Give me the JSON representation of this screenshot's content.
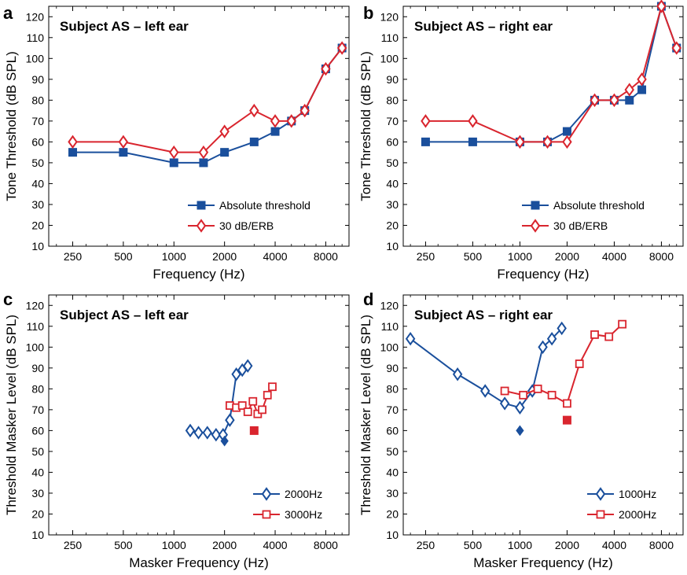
{
  "colors": {
    "blue": "#1a4f9c",
    "red": "#d9252e"
  },
  "chart_data": [
    {
      "panel": "a",
      "type": "line",
      "title": "Subject AS – left ear",
      "xlabel": "Frequency (Hz)",
      "ylabel": "Tone Threshold (dB SPL)",
      "xscale": "log",
      "xlim": [
        180,
        11000
      ],
      "ylim": [
        10,
        125
      ],
      "xticks": [
        250,
        500,
        1000,
        2000,
        4000,
        8000
      ],
      "yticks": [
        10,
        20,
        30,
        40,
        50,
        60,
        70,
        80,
        90,
        100,
        110,
        120
      ],
      "legend": "bottom-right",
      "series": [
        {
          "name": "Absolute threshold",
          "marker": "square-filled",
          "color": "#1a4f9c",
          "x": [
            250,
            500,
            1000,
            1500,
            2000,
            3000,
            4000,
            5000,
            6000,
            8000,
            10000
          ],
          "y": [
            55,
            55,
            50,
            50,
            55,
            60,
            65,
            70,
            75,
            95,
            105
          ]
        },
        {
          "name": "30 dB/ERB",
          "marker": "diamond-open",
          "color": "#d9252e",
          "x": [
            250,
            500,
            1000,
            1500,
            2000,
            3000,
            4000,
            5000,
            6000,
            8000,
            10000
          ],
          "y": [
            60,
            60,
            55,
            55,
            65,
            75,
            70,
            70,
            75,
            95,
            105
          ]
        }
      ]
    },
    {
      "panel": "b",
      "type": "line",
      "title": "Subject AS – right ear",
      "xlabel": "Frequency (Hz)",
      "ylabel": "Tone Threshold (dB SPL)",
      "xscale": "log",
      "xlim": [
        180,
        11000
      ],
      "ylim": [
        10,
        125
      ],
      "xticks": [
        250,
        500,
        1000,
        2000,
        4000,
        8000
      ],
      "yticks": [
        10,
        20,
        30,
        40,
        50,
        60,
        70,
        80,
        90,
        100,
        110,
        120
      ],
      "legend": "bottom-right",
      "series": [
        {
          "name": "Absolute threshold",
          "marker": "square-filled",
          "color": "#1a4f9c",
          "x": [
            250,
            500,
            1000,
            1500,
            2000,
            3000,
            4000,
            5000,
            6000,
            8000,
            10000
          ],
          "y": [
            60,
            60,
            60,
            60,
            65,
            80,
            80,
            80,
            85,
            125,
            105
          ]
        },
        {
          "name": "30 dB/ERB",
          "marker": "diamond-open",
          "color": "#d9252e",
          "x": [
            250,
            500,
            1000,
            1500,
            2000,
            3000,
            4000,
            5000,
            6000,
            8000,
            10000
          ],
          "y": [
            70,
            70,
            60,
            60,
            60,
            80,
            80,
            85,
            90,
            125,
            105
          ]
        }
      ]
    },
    {
      "panel": "c",
      "type": "line",
      "title": "Subject AS – left ear",
      "xlabel": "Masker Frequency (Hz)",
      "ylabel": "Threshold Masker Level (dB SPL)",
      "xscale": "log",
      "xlim": [
        180,
        11000
      ],
      "ylim": [
        10,
        125
      ],
      "xticks": [
        250,
        500,
        1000,
        2000,
        4000,
        8000
      ],
      "yticks": [
        10,
        20,
        30,
        40,
        50,
        60,
        70,
        80,
        90,
        100,
        110,
        120
      ],
      "legend": "bottom-right",
      "series": [
        {
          "name": "2000Hz",
          "marker": "diamond-open",
          "color": "#1a4f9c",
          "x": [
            1250,
            1400,
            1580,
            1780,
            1960,
            2150,
            2350,
            2550,
            2750
          ],
          "y": [
            60,
            59,
            59,
            58,
            58,
            65,
            87,
            89,
            91
          ]
        },
        {
          "name": "3000Hz",
          "marker": "square-open",
          "color": "#d9252e",
          "x": [
            2150,
            2350,
            2550,
            2750,
            2950,
            3150,
            3350,
            3600,
            3850
          ],
          "y": [
            72,
            71,
            72,
            69,
            74,
            68,
            70,
            77,
            81
          ]
        }
      ],
      "points": [
        {
          "series": "2000Hz",
          "marker": "diamond-filled",
          "color": "#1a4f9c",
          "x": 2000,
          "y": 55
        },
        {
          "series": "3000Hz",
          "marker": "square-filled",
          "color": "#d9252e",
          "x": 3000,
          "y": 60
        }
      ]
    },
    {
      "panel": "d",
      "type": "line",
      "title": "Subject AS – right ear",
      "xlabel": "Masker Frequency (Hz)",
      "ylabel": "Threshold Masker Level (dB SPL)",
      "xscale": "log",
      "xlim": [
        180,
        11000
      ],
      "ylim": [
        10,
        125
      ],
      "xticks": [
        250,
        500,
        1000,
        2000,
        4000,
        8000
      ],
      "yticks": [
        10,
        20,
        30,
        40,
        50,
        60,
        70,
        80,
        90,
        100,
        110,
        120
      ],
      "legend": "bottom-right",
      "series": [
        {
          "name": "1000Hz",
          "marker": "diamond-open",
          "color": "#1a4f9c",
          "x": [
            200,
            400,
            600,
            800,
            1000,
            1200,
            1400,
            1600,
            1850
          ],
          "y": [
            104,
            87,
            79,
            73,
            71,
            79,
            100,
            104,
            109
          ]
        },
        {
          "name": "2000Hz",
          "marker": "square-open",
          "color": "#d9252e",
          "x": [
            800,
            1050,
            1300,
            1600,
            2000,
            2400,
            3000,
            3700,
            4500
          ],
          "y": [
            79,
            77,
            80,
            77,
            73,
            92,
            106,
            105,
            111
          ]
        }
      ],
      "points": [
        {
          "series": "1000Hz",
          "marker": "diamond-filled",
          "color": "#1a4f9c",
          "x": 1000,
          "y": 60
        },
        {
          "series": "2000Hz",
          "marker": "square-filled",
          "color": "#d9252e",
          "x": 2000,
          "y": 65
        }
      ]
    }
  ]
}
